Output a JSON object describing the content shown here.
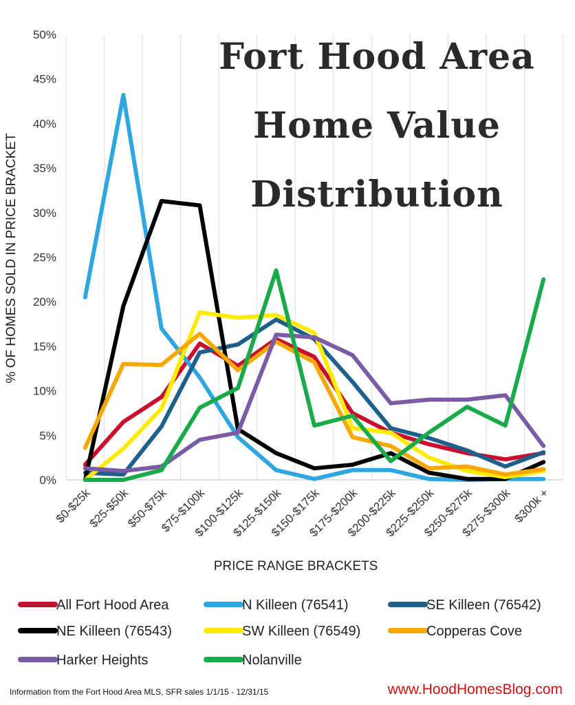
{
  "chart_data": {
    "type": "line",
    "title_lines": [
      "Fort Hood Area",
      "Home Value",
      "Distribution"
    ],
    "xlabel": "PRICE RANGE BRACKETS",
    "ylabel": "% OF HOMES SOLD IN PRICE BRACKET",
    "categories": [
      "$0-$25k",
      "$25-$50k",
      "$50-$75k",
      "$75-$100k",
      "$100-$125k",
      "$125-$150k",
      "$150-$175k",
      "$175-$200k",
      "$200-$225k",
      "$225-$250k",
      "$250-$275k",
      "$275-$300k",
      "$300k +"
    ],
    "ylim": [
      0,
      50
    ],
    "yticks": [
      {
        "value": 0,
        "label": "0%"
      },
      {
        "value": 5,
        "label": "5%"
      },
      {
        "value": 10,
        "label": "10%"
      },
      {
        "value": 15,
        "label": "15%"
      },
      {
        "value": 20,
        "label": "20%"
      },
      {
        "value": 25,
        "label": "25%"
      },
      {
        "value": 30,
        "label": "30%"
      },
      {
        "value": 35,
        "label": "35%"
      },
      {
        "value": 40,
        "label": "40%"
      },
      {
        "value": 45,
        "label": "45%"
      },
      {
        "value": 50,
        "label": "50%"
      }
    ],
    "grid": "vertical",
    "legend_position": "bottom",
    "series": [
      {
        "name": "All Fort Hood Area",
        "color": "#c8102e",
        "values": [
          1.7,
          6.5,
          9.3,
          15.3,
          12.8,
          15.8,
          13.8,
          7.5,
          5.3,
          4.0,
          3.0,
          2.3,
          3.0
        ]
      },
      {
        "name": "N Killeen (76541)",
        "color": "#2ea7e0",
        "values": [
          20.5,
          43.2,
          17.0,
          11.5,
          4.8,
          1.1,
          0.1,
          1.1,
          1.1,
          0.1,
          0.0,
          0.1,
          0.1
        ]
      },
      {
        "name": "SE Killeen (76542)",
        "color": "#1f5f8b",
        "values": [
          0.8,
          0.6,
          6.0,
          14.3,
          15.2,
          18.0,
          15.8,
          11.0,
          5.8,
          4.7,
          3.3,
          1.5,
          3.1
        ]
      },
      {
        "name": "NE Killeen (76543)",
        "color": "#000000",
        "values": [
          0.0,
          19.5,
          31.3,
          30.8,
          5.7,
          3.0,
          1.3,
          1.7,
          3.0,
          0.8,
          0.1,
          0.1,
          2.0
        ]
      },
      {
        "name": "SW Killeen (76549)",
        "color": "#ffeb00",
        "values": [
          0.0,
          3.5,
          8.0,
          18.8,
          18.2,
          18.5,
          16.5,
          5.8,
          5.3,
          2.5,
          1.0,
          0.3,
          1.0
        ]
      },
      {
        "name": "Copperas Cove",
        "color": "#f7a800",
        "values": [
          3.6,
          13.0,
          12.9,
          16.4,
          12.3,
          15.5,
          13.2,
          4.8,
          3.8,
          1.3,
          1.5,
          0.6,
          1.2
        ]
      },
      {
        "name": "Harker Heights",
        "color": "#7a5ba6",
        "values": [
          1.3,
          1.0,
          1.5,
          4.5,
          5.3,
          16.3,
          16.0,
          14.0,
          8.6,
          9.0,
          9.0,
          9.5,
          3.8
        ]
      },
      {
        "name": "Nolanville",
        "color": "#1aaa4a",
        "values": [
          0.0,
          0.0,
          1.1,
          8.1,
          10.3,
          23.5,
          6.1,
          7.2,
          2.1,
          5.3,
          8.2,
          6.1,
          22.5
        ]
      }
    ]
  },
  "footer": {
    "source_note": "Information from the Fort Hood Area MLS, SFR sales 1/1/15 - 12/31/15",
    "website": "www.HoodHomesBlog.com"
  }
}
